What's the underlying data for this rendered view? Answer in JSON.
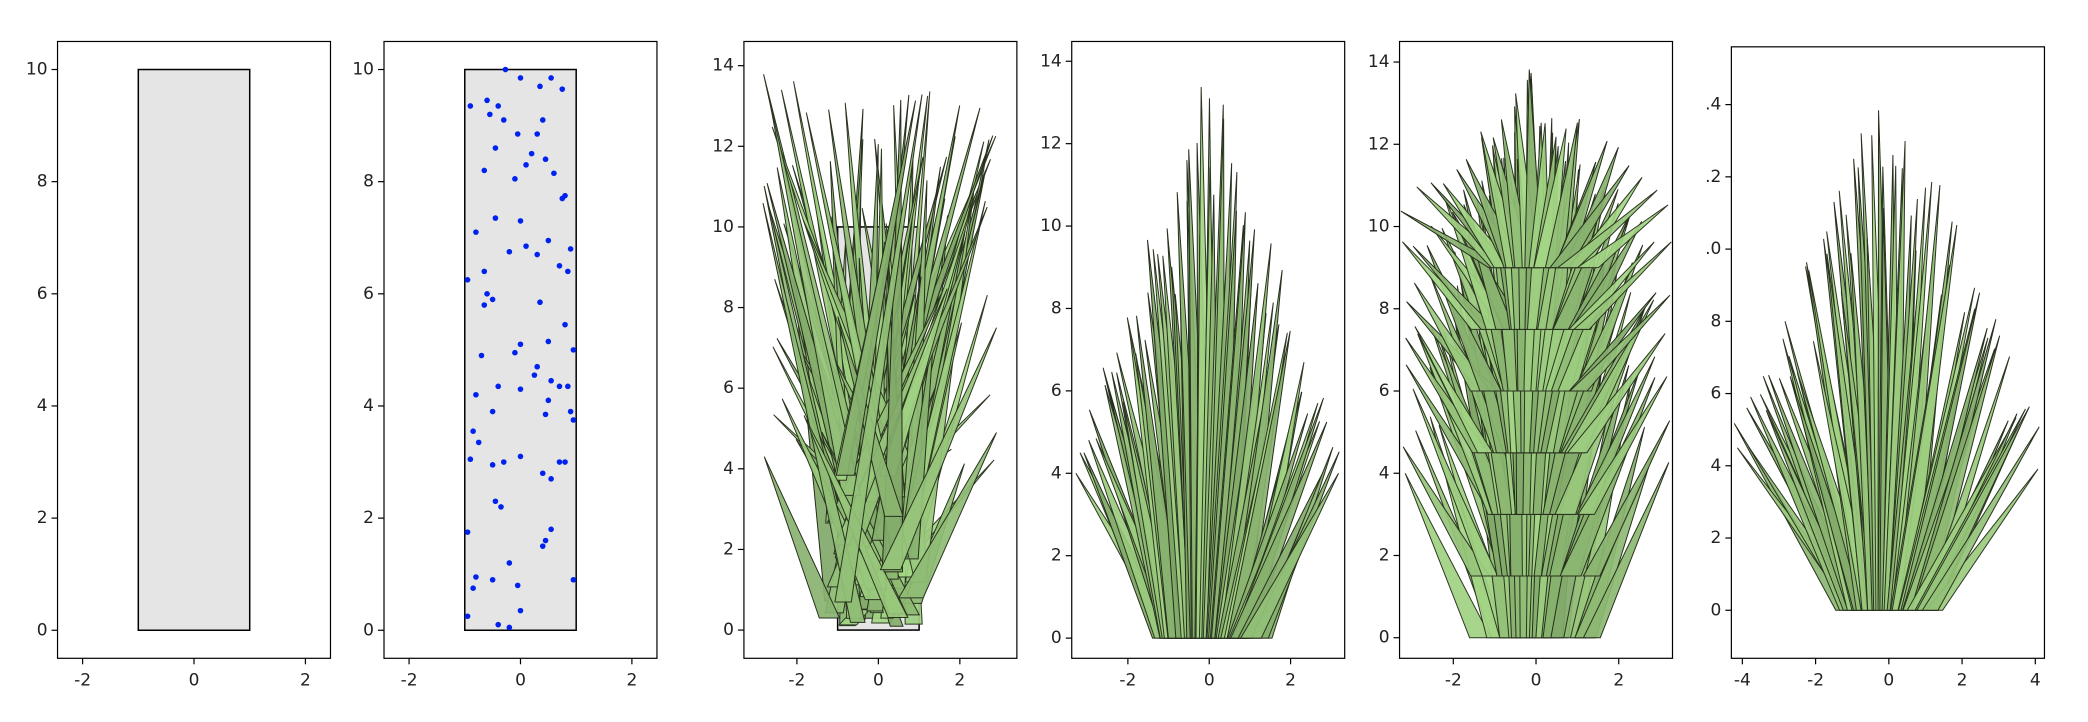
{
  "chart_data": [
    {
      "type": "rect",
      "rect": [
        -1,
        0,
        2,
        10
      ],
      "rect_color": "#e5e5e5",
      "xlim": [
        -2.45,
        2.45
      ],
      "ylim": [
        -0.5,
        10.5
      ],
      "xticks": [
        -2,
        0,
        2
      ],
      "yticks": [
        0,
        2,
        4,
        6,
        8,
        10
      ]
    },
    {
      "type": "scatter",
      "rect": [
        -1,
        0,
        2,
        10
      ],
      "rect_color": "#e5e5e5",
      "color": "#0022ee",
      "x": [
        -0.27,
        0,
        0.35,
        0.55,
        0.75,
        -0.9,
        -0.6,
        -0.4,
        -0.55,
        -0.3,
        0.4,
        0.3,
        -0.05,
        -0.45,
        0.2,
        0.45,
        0.1,
        -0.65,
        0.6,
        -0.1,
        0.8,
        0.75,
        0,
        -0.45,
        -0.8,
        0.9,
        -0.2,
        0.1,
        0.3,
        0.5,
        0.7,
        0.85,
        -0.65,
        -0.95,
        -0.6,
        -0.5,
        -0.65,
        0.35,
        0.8,
        0.5,
        0,
        -0.1,
        -0.7,
        0.95,
        0.3,
        0.25,
        0.55,
        -0.4,
        0.7,
        0.85,
        -0.8,
        0,
        0.5,
        -0.5,
        0.9,
        0.95,
        0.45,
        -0.85,
        -0.75,
        -0.9,
        -0.3,
        -0.5,
        0,
        0.7,
        0.8,
        0.4,
        0.55,
        -0.45,
        -0.35,
        0.55,
        0.45,
        0.4,
        -0.95,
        -0.8,
        -0.85,
        -0.5,
        -0.05,
        -0.2,
        0.95,
        0,
        -0.95,
        -0.4,
        -0.2
      ],
      "y": [
        10,
        9.85,
        9.7,
        9.85,
        9.65,
        9.35,
        9.45,
        9.35,
        9.2,
        9.1,
        9.1,
        8.85,
        8.85,
        8.6,
        8.5,
        8.4,
        8.3,
        8.2,
        8.15,
        8.05,
        7.75,
        7.7,
        7.3,
        7.35,
        7.1,
        6.8,
        6.75,
        6.85,
        6.7,
        6.95,
        6.5,
        6.4,
        6.4,
        6.25,
        6,
        5.9,
        5.8,
        5.85,
        5.45,
        5.15,
        5.1,
        4.95,
        4.9,
        5,
        4.7,
        4.55,
        4.45,
        4.35,
        4.35,
        4.35,
        4.2,
        4.3,
        4.1,
        3.9,
        3.9,
        3.75,
        3.85,
        3.55,
        3.35,
        3.05,
        3,
        2.95,
        3.1,
        3,
        3,
        2.8,
        2.7,
        2.3,
        2.2,
        1.8,
        1.6,
        1.5,
        1.75,
        0.95,
        0.75,
        0.9,
        0.8,
        1.2,
        0.9,
        0.35,
        0.25,
        0.1,
        0.05
      ],
      "xlim": [
        -2.45,
        2.45
      ],
      "ylim": [
        -0.5,
        10.5
      ],
      "xticks": [
        -2,
        0,
        2
      ],
      "yticks": [
        0,
        2,
        4,
        6,
        8,
        10
      ]
    },
    {
      "type": "leaves",
      "rect": [
        -1,
        0,
        2,
        10
      ],
      "rect_color": "#e5e5e5",
      "color": "#93c077",
      "xlim": [
        -3.3,
        3.4
      ],
      "ylim": [
        -0.7,
        14.6
      ],
      "xticks": [
        -2,
        0,
        2
      ],
      "yticks": [
        0,
        2,
        4,
        6,
        8,
        10,
        12,
        14
      ]
    },
    {
      "type": "leaves",
      "color": "#93c077",
      "xlim": [
        -3.38,
        3.33
      ],
      "ylim": [
        -0.49,
        14.48
      ],
      "xticks": [
        -2,
        0,
        2
      ],
      "yticks": [
        0,
        2,
        4,
        6,
        8,
        10,
        12,
        14
      ]
    },
    {
      "type": "leaves",
      "color": "#93c077",
      "xlim": [
        -3.3,
        3.3
      ],
      "ylim": [
        -0.5,
        14.5
      ],
      "xticks": [
        -2,
        0,
        2
      ],
      "yticks": [
        0,
        2,
        4,
        6,
        8,
        10,
        12,
        14
      ]
    },
    {
      "type": "leaves",
      "color": "#93c077",
      "xlim": [
        -4.3,
        4.25
      ],
      "ylim": [
        -1.33,
        15.6
      ],
      "xticks": [
        -4,
        -2,
        0,
        2,
        4
      ],
      "yticks": [
        0,
        2,
        4,
        6,
        8,
        {
          "value": 10,
          "label": ".0"
        },
        {
          "value": 12,
          "label": ".2"
        },
        {
          "value": 14,
          "label": ".4"
        }
      ]
    }
  ]
}
